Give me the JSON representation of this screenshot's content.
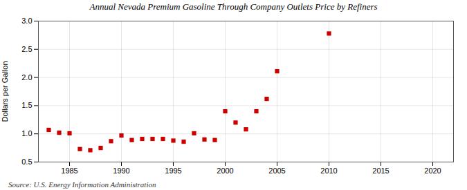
{
  "chart_data": {
    "type": "scatter",
    "title": "Annual Nevada Premium Gasoline Through Company Outlets Price by Refiners",
    "ylabel": "Dollars per Gallon",
    "source": "Source: U.S. Energy Information Administration",
    "x": [
      1983,
      1984,
      1985,
      1986,
      1987,
      1988,
      1989,
      1990,
      1991,
      1992,
      1993,
      1994,
      1995,
      1996,
      1997,
      1998,
      1999,
      2000,
      2001,
      2002,
      2003,
      2004,
      2005,
      2010
    ],
    "values": [
      1.07,
      1.02,
      1.01,
      0.73,
      0.71,
      0.75,
      0.87,
      0.97,
      0.89,
      0.91,
      0.91,
      0.91,
      0.88,
      0.86,
      1.01,
      0.9,
      0.89,
      1.4,
      1.2,
      1.08,
      1.4,
      1.62,
      2.11,
      2.78
    ],
    "color": "#cc0000",
    "marker": "square",
    "xlim": [
      1982,
      2022
    ],
    "xticks": [
      1985,
      1990,
      1995,
      2000,
      2005,
      2010,
      2015,
      2020
    ],
    "ylim": [
      0.5,
      3.0
    ],
    "yticks": [
      0.5,
      {
        "value": 1.0,
        "label": "1.0"
      },
      1.5,
      {
        "value": 2.0,
        "label": "2.0"
      },
      2.5,
      {
        "value": 3.0,
        "label": "3.0"
      }
    ],
    "grid": true
  }
}
